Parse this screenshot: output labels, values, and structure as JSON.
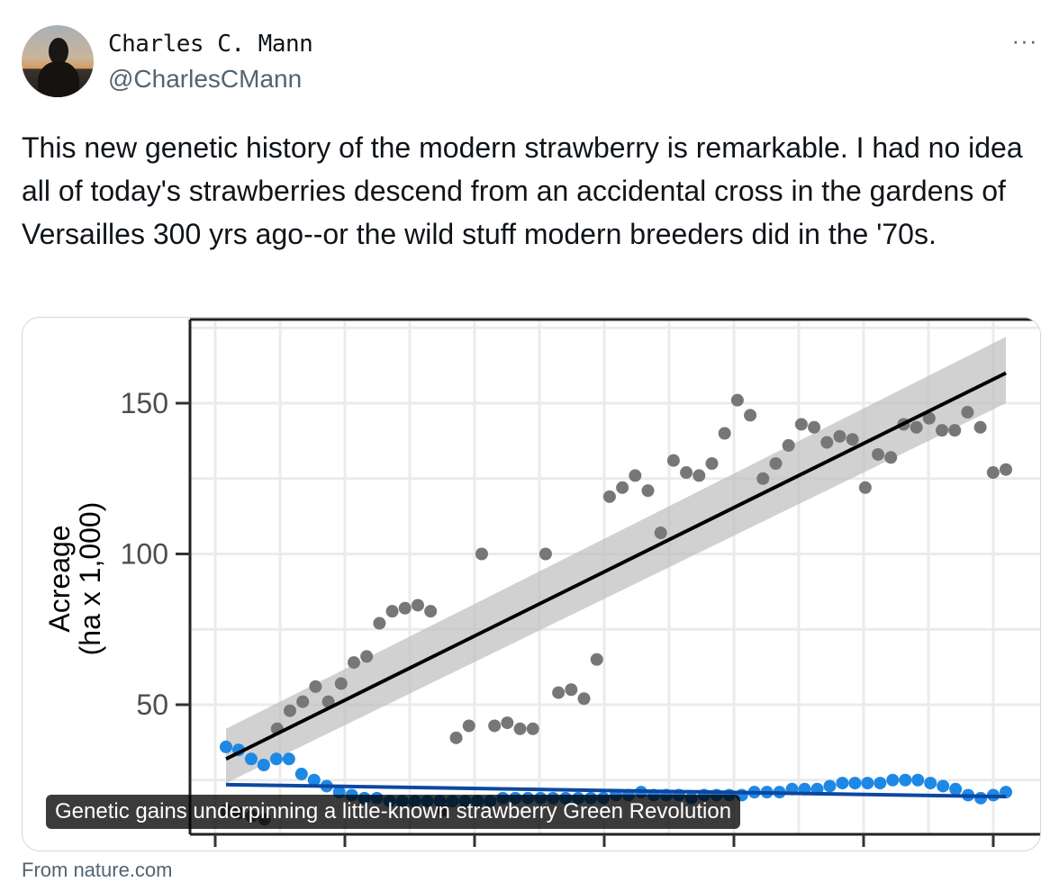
{
  "tweet": {
    "author": {
      "display_name": "Charles C. Mann",
      "handle": "@CharlesCMann"
    },
    "more_icon": "more-horizontal-icon",
    "more_glyph": "···",
    "text": "This new genetic history of the modern strawberry is remarkable. I had no idea all of today's strawberries descend from an accidental cross in the gardens of Versailles 300 yrs ago--or the wild stuff modern breeders did in the '70s.",
    "card": {
      "caption": "Genetic gains underpinning a little-known strawberry Green Revolution",
      "source": "From nature.com"
    }
  },
  "chart_data": {
    "type": "scatter",
    "title": "",
    "xlabel": "",
    "ylabel": "Acreage",
    "ylabel_sub": "(ha x 1,000)",
    "yticks": [
      50,
      100,
      150
    ],
    "ylim": [
      20,
      178
    ],
    "xlim": [
      0,
      63
    ],
    "grid": true,
    "colors": {
      "gray_points": "#777777",
      "blue_points": "#1e88e5",
      "black_trend": "#000000",
      "blue_trend": "#0d47a1",
      "ci_band": "#bdbdbd"
    },
    "series": [
      {
        "values": [
          15,
          14,
          13,
          12,
          42,
          48,
          51,
          56,
          51,
          57,
          64,
          66,
          77,
          81,
          82,
          83,
          81,
          15,
          39,
          43,
          100,
          43,
          44,
          42,
          42,
          100,
          54,
          55,
          52,
          65,
          119,
          122,
          126,
          121,
          107,
          131,
          127,
          126,
          130,
          140,
          151,
          146,
          125,
          130,
          136,
          143,
          142,
          137,
          139,
          138,
          122,
          133,
          132,
          143,
          142,
          145,
          141,
          141,
          147,
          142,
          127,
          128
        ],
        "trend": {
          "start": 32,
          "end": 160
        }
      },
      {
        "values": [
          36,
          35,
          32,
          30,
          32,
          32,
          27,
          25,
          23,
          21,
          20,
          19,
          19,
          18,
          18,
          18,
          18,
          18,
          18,
          18,
          18,
          18,
          19,
          19,
          19,
          19,
          19,
          19,
          19,
          19,
          19,
          20,
          20,
          21,
          20,
          20,
          20,
          19,
          20,
          20,
          20,
          20,
          21,
          21,
          21,
          22,
          22,
          22,
          23,
          24,
          24,
          24,
          24,
          25,
          25,
          25,
          24,
          23,
          22,
          20,
          19,
          20,
          21
        ],
        "trend": {
          "start": 23.5,
          "end": 19.5
        }
      }
    ]
  }
}
